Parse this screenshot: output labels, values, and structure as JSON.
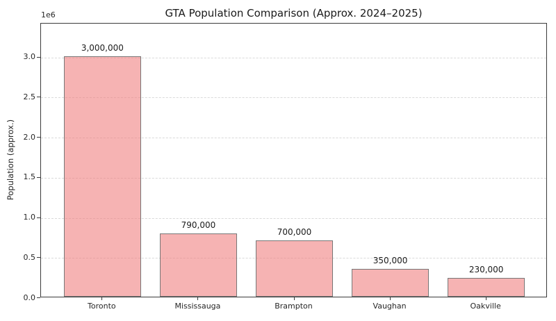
{
  "chart_data": {
    "type": "bar",
    "title": "GTA Population Comparison (Approx. 2024–2025)",
    "xlabel": "",
    "ylabel": "Population (approx.)",
    "y_offset_text": "1e6",
    "categories": [
      "Toronto",
      "Mississauga",
      "Brampton",
      "Vaughan",
      "Oakville"
    ],
    "values": [
      3000000,
      790000,
      700000,
      350000,
      230000
    ],
    "value_labels": [
      "3,000,000",
      "790,000",
      "700,000",
      "350,000",
      "230,000"
    ],
    "ytick_values": [
      0,
      500000,
      1000000,
      1500000,
      2000000,
      2500000,
      3000000
    ],
    "ytick_labels": [
      "0.0",
      "0.5",
      "1.0",
      "1.5",
      "2.0",
      "2.5",
      "3.0"
    ],
    "ylim": [
      0,
      3420000
    ],
    "xlim": [
      -0.64,
      4.64
    ],
    "bar_width_units": 0.8,
    "grid": {
      "axis": "y",
      "linestyle": "dashed",
      "color": "#d9d9d9"
    },
    "legend": null,
    "colors": {
      "bar_fill": "rgba(240,128,128,0.6)",
      "bar_edge": "#777777",
      "spine": "#3a3a3a",
      "grid": "#d9d9d9",
      "text": "#262626",
      "background": "#ffffff"
    }
  }
}
